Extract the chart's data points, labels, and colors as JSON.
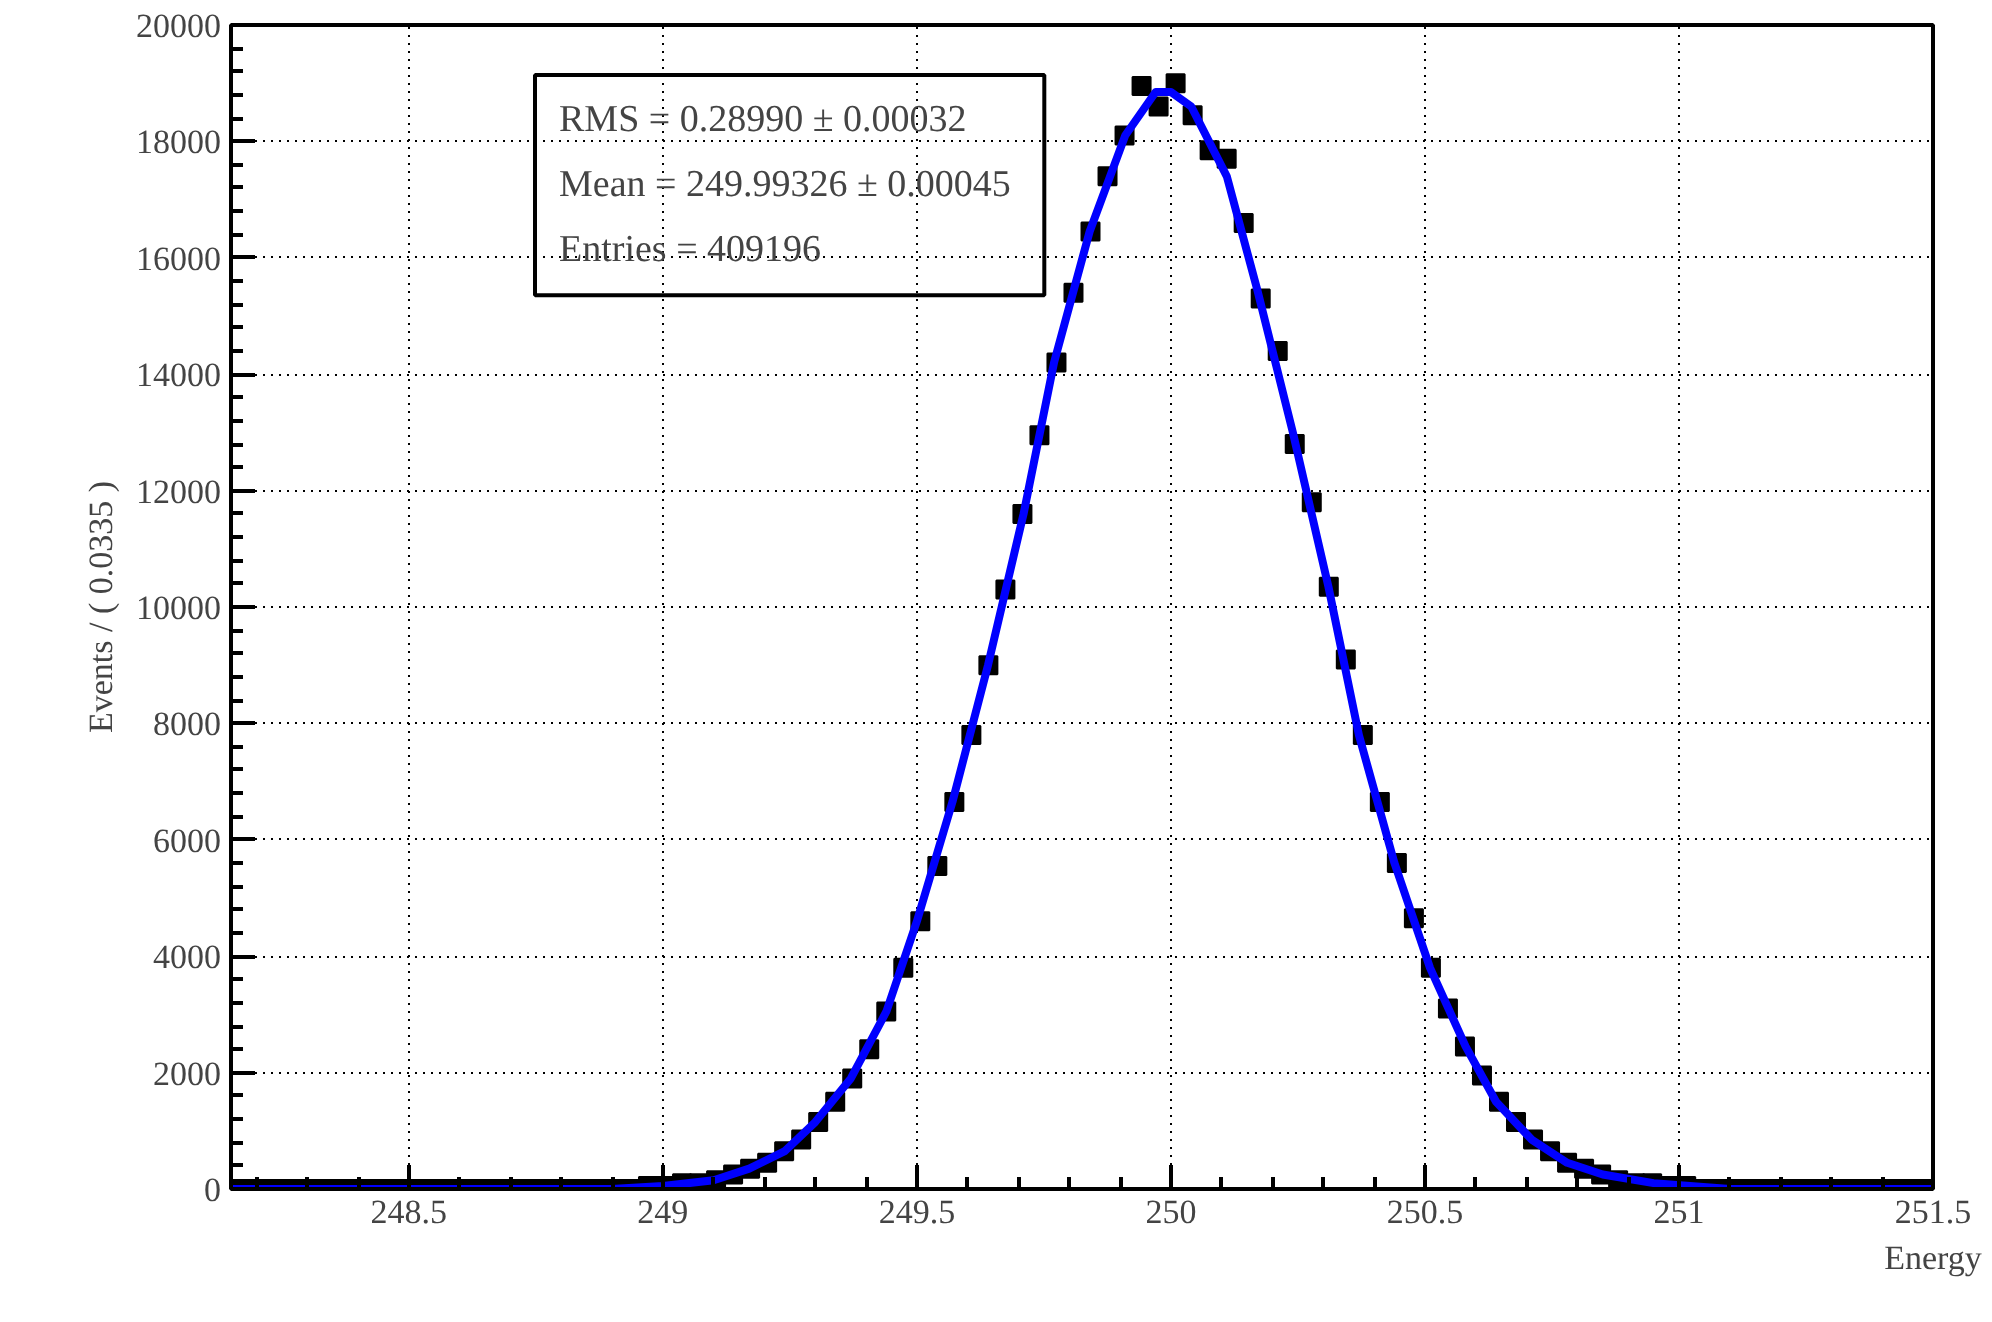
{
  "chart_data": {
    "type": "scatter",
    "xlabel": "Energy",
    "ylabel": "Events / ( 0.0335 )",
    "annotations": [
      "RMS =  0.28990 ± 0.00032",
      "Mean =  249.99326 ± 0.00045",
      "Entries =  409196"
    ],
    "xlim": [
      248.15,
      251.5
    ],
    "xticks": [
      248.5,
      249,
      249.5,
      250,
      250.5,
      251,
      251.5
    ],
    "ylim": [
      0,
      20000
    ],
    "yticks": [
      0,
      2000,
      4000,
      6000,
      8000,
      10000,
      12000,
      14000,
      16000,
      18000,
      20000
    ],
    "grid": true,
    "marker": "square",
    "series": [
      {
        "color": "#000000",
        "x": [
          248.16675,
          248.20025,
          248.23375,
          248.26725,
          248.30075,
          248.33425,
          248.36775,
          248.40125,
          248.43475,
          248.46825,
          248.50175,
          248.53525,
          248.56875,
          248.60225,
          248.63575,
          248.66925,
          248.70275,
          248.73625,
          248.76975,
          248.80325,
          248.83675,
          248.87025,
          248.90375,
          248.93725,
          248.97075,
          249.00425,
          249.03775,
          249.07125,
          249.10475,
          249.13825,
          249.17175,
          249.20525,
          249.23875,
          249.27225,
          249.30575,
          249.33925,
          249.37275,
          249.40625,
          249.43975,
          249.47325,
          249.50675,
          249.54025,
          249.57375,
          249.60725,
          249.64075,
          249.67425,
          249.70775,
          249.74125,
          249.77475,
          249.80825,
          249.84175,
          249.87525,
          249.90875,
          249.94225,
          249.97575,
          250.00925,
          250.04275,
          250.07625,
          250.10975,
          250.14325,
          250.17675,
          250.21025,
          250.24375,
          250.27725,
          250.31075,
          250.34425,
          250.37775,
          250.41125,
          250.44475,
          250.47825,
          250.51175,
          250.54525,
          250.57875,
          250.61225,
          250.64575,
          250.67925,
          250.71275,
          250.74625,
          250.77975,
          250.81325,
          250.84675,
          250.88025,
          250.91375,
          250.94725,
          250.98075,
          251.01425,
          251.04775,
          251.08125,
          251.11475,
          251.14825,
          251.18175,
          251.21525,
          251.24875,
          251.28225,
          251.31575,
          251.34925,
          251.38275,
          251.41625,
          251.44975,
          251.48325
        ],
        "values": [
          0,
          0,
          0,
          0,
          0,
          0,
          0,
          0,
          0,
          0,
          0,
          0,
          0,
          0,
          0,
          0,
          0,
          0,
          0,
          0,
          0,
          0,
          0,
          0,
          50,
          50,
          100,
          100,
          150,
          250,
          350,
          450,
          650,
          850,
          1150,
          1500,
          1900,
          2400,
          3050,
          3800,
          4600,
          5550,
          6650,
          7800,
          9000,
          10300,
          11600,
          12950,
          14200,
          15400,
          16450,
          17400,
          18100,
          18950,
          18600,
          19000,
          18450,
          17850,
          17700,
          16600,
          15300,
          14400,
          12800,
          11800,
          10350,
          9100,
          7800,
          6650,
          5600,
          4650,
          3800,
          3100,
          2450,
          1950,
          1500,
          1150,
          850,
          650,
          450,
          350,
          250,
          150,
          100,
          100,
          50,
          50,
          0,
          0,
          0,
          0,
          0,
          0,
          0,
          0,
          0,
          0,
          0,
          0,
          0,
          0
        ]
      },
      {
        "type": "line",
        "color": "#0000ff",
        "line_style": "solid",
        "marker": "none",
        "x": [
          248.15,
          248.5,
          248.8,
          248.9,
          249.0,
          249.1,
          249.17,
          249.24,
          249.3,
          249.37,
          249.44,
          249.5,
          249.57,
          249.64,
          249.71,
          249.77,
          249.84,
          249.91,
          249.97,
          250.0,
          250.04,
          250.11,
          250.17,
          250.24,
          250.31,
          250.37,
          250.44,
          250.51,
          250.58,
          250.64,
          250.71,
          250.78,
          250.85,
          250.95,
          251.1,
          251.3,
          251.5
        ],
        "values": [
          0,
          0,
          0,
          0,
          50,
          150,
          350,
          650,
          1150,
          1900,
          3050,
          4600,
          6650,
          9000,
          11600,
          14200,
          16450,
          18100,
          18850,
          18850,
          18600,
          17400,
          15450,
          13000,
          10350,
          7800,
          5600,
          3800,
          2450,
          1500,
          850,
          450,
          250,
          100,
          0,
          0,
          0
        ]
      }
    ]
  }
}
